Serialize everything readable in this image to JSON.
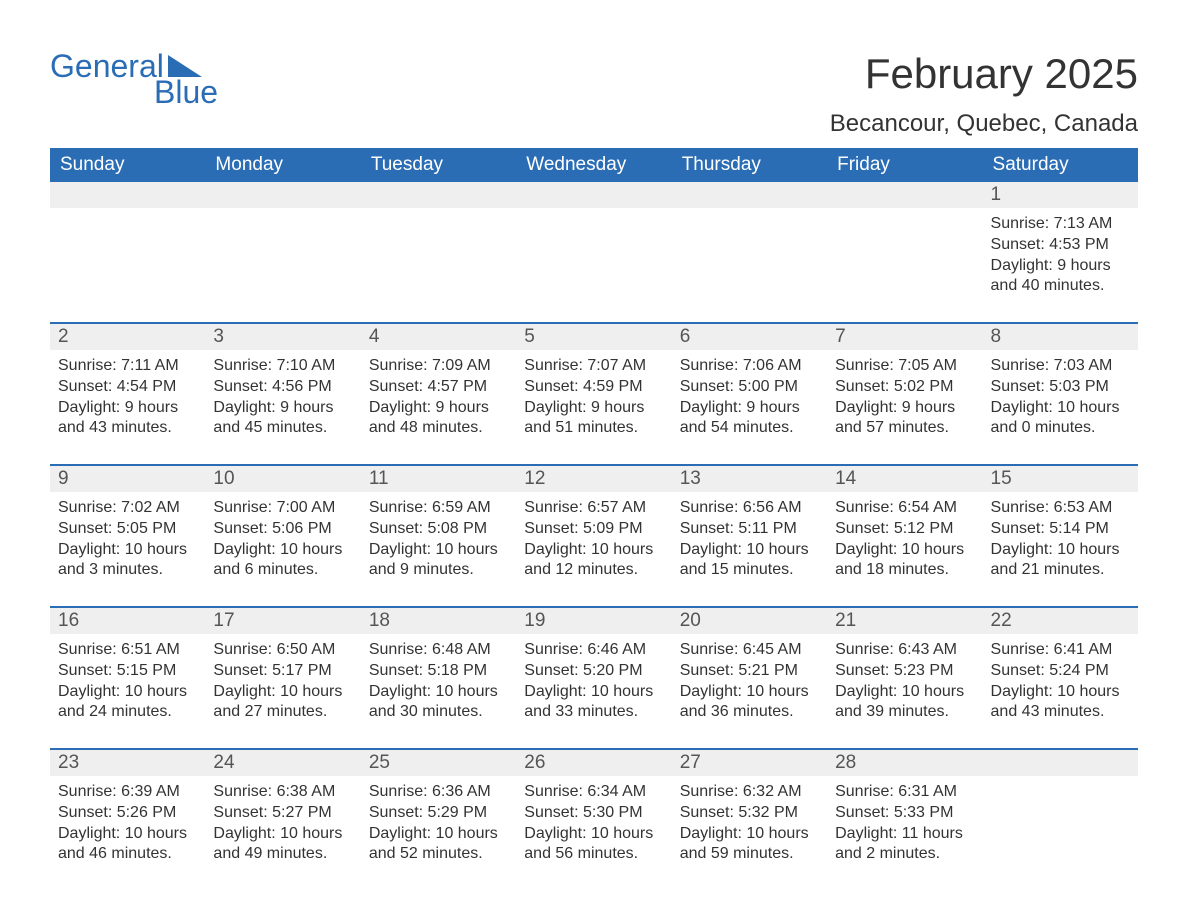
{
  "logo": {
    "word1": "General",
    "word2": "Blue",
    "brand_color": "#2a6db5"
  },
  "title": "February 2025",
  "location": "Becancour, Quebec, Canada",
  "colors": {
    "header_bg": "#2a6db5",
    "header_text": "#ffffff",
    "daynum_bg": "#efefef",
    "week_border": "#2a6db5",
    "body_text": "#333333",
    "page_bg": "#ffffff"
  },
  "typography": {
    "title_fontsize": 42,
    "location_fontsize": 24,
    "header_fontsize": 19,
    "daynum_fontsize": 19,
    "body_fontsize": 16
  },
  "day_headers": [
    "Sunday",
    "Monday",
    "Tuesday",
    "Wednesday",
    "Thursday",
    "Friday",
    "Saturday"
  ],
  "weeks": [
    [
      null,
      null,
      null,
      null,
      null,
      null,
      {
        "n": "1",
        "sunrise": "7:13 AM",
        "sunset": "4:53 PM",
        "daylight": "9 hours and 40 minutes."
      }
    ],
    [
      {
        "n": "2",
        "sunrise": "7:11 AM",
        "sunset": "4:54 PM",
        "daylight": "9 hours and 43 minutes."
      },
      {
        "n": "3",
        "sunrise": "7:10 AM",
        "sunset": "4:56 PM",
        "daylight": "9 hours and 45 minutes."
      },
      {
        "n": "4",
        "sunrise": "7:09 AM",
        "sunset": "4:57 PM",
        "daylight": "9 hours and 48 minutes."
      },
      {
        "n": "5",
        "sunrise": "7:07 AM",
        "sunset": "4:59 PM",
        "daylight": "9 hours and 51 minutes."
      },
      {
        "n": "6",
        "sunrise": "7:06 AM",
        "sunset": "5:00 PM",
        "daylight": "9 hours and 54 minutes."
      },
      {
        "n": "7",
        "sunrise": "7:05 AM",
        "sunset": "5:02 PM",
        "daylight": "9 hours and 57 minutes."
      },
      {
        "n": "8",
        "sunrise": "7:03 AM",
        "sunset": "5:03 PM",
        "daylight": "10 hours and 0 minutes."
      }
    ],
    [
      {
        "n": "9",
        "sunrise": "7:02 AM",
        "sunset": "5:05 PM",
        "daylight": "10 hours and 3 minutes."
      },
      {
        "n": "10",
        "sunrise": "7:00 AM",
        "sunset": "5:06 PM",
        "daylight": "10 hours and 6 minutes."
      },
      {
        "n": "11",
        "sunrise": "6:59 AM",
        "sunset": "5:08 PM",
        "daylight": "10 hours and 9 minutes."
      },
      {
        "n": "12",
        "sunrise": "6:57 AM",
        "sunset": "5:09 PM",
        "daylight": "10 hours and 12 minutes."
      },
      {
        "n": "13",
        "sunrise": "6:56 AM",
        "sunset": "5:11 PM",
        "daylight": "10 hours and 15 minutes."
      },
      {
        "n": "14",
        "sunrise": "6:54 AM",
        "sunset": "5:12 PM",
        "daylight": "10 hours and 18 minutes."
      },
      {
        "n": "15",
        "sunrise": "6:53 AM",
        "sunset": "5:14 PM",
        "daylight": "10 hours and 21 minutes."
      }
    ],
    [
      {
        "n": "16",
        "sunrise": "6:51 AM",
        "sunset": "5:15 PM",
        "daylight": "10 hours and 24 minutes."
      },
      {
        "n": "17",
        "sunrise": "6:50 AM",
        "sunset": "5:17 PM",
        "daylight": "10 hours and 27 minutes."
      },
      {
        "n": "18",
        "sunrise": "6:48 AM",
        "sunset": "5:18 PM",
        "daylight": "10 hours and 30 minutes."
      },
      {
        "n": "19",
        "sunrise": "6:46 AM",
        "sunset": "5:20 PM",
        "daylight": "10 hours and 33 minutes."
      },
      {
        "n": "20",
        "sunrise": "6:45 AM",
        "sunset": "5:21 PM",
        "daylight": "10 hours and 36 minutes."
      },
      {
        "n": "21",
        "sunrise": "6:43 AM",
        "sunset": "5:23 PM",
        "daylight": "10 hours and 39 minutes."
      },
      {
        "n": "22",
        "sunrise": "6:41 AM",
        "sunset": "5:24 PM",
        "daylight": "10 hours and 43 minutes."
      }
    ],
    [
      {
        "n": "23",
        "sunrise": "6:39 AM",
        "sunset": "5:26 PM",
        "daylight": "10 hours and 46 minutes."
      },
      {
        "n": "24",
        "sunrise": "6:38 AM",
        "sunset": "5:27 PM",
        "daylight": "10 hours and 49 minutes."
      },
      {
        "n": "25",
        "sunrise": "6:36 AM",
        "sunset": "5:29 PM",
        "daylight": "10 hours and 52 minutes."
      },
      {
        "n": "26",
        "sunrise": "6:34 AM",
        "sunset": "5:30 PM",
        "daylight": "10 hours and 56 minutes."
      },
      {
        "n": "27",
        "sunrise": "6:32 AM",
        "sunset": "5:32 PM",
        "daylight": "10 hours and 59 minutes."
      },
      {
        "n": "28",
        "sunrise": "6:31 AM",
        "sunset": "5:33 PM",
        "daylight": "11 hours and 2 minutes."
      },
      null
    ]
  ],
  "labels": {
    "sunrise": "Sunrise: ",
    "sunset": "Sunset: ",
    "daylight": "Daylight: "
  }
}
